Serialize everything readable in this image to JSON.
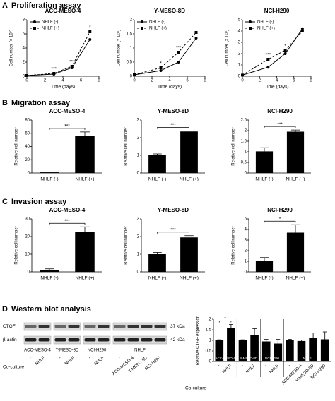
{
  "sections": [
    {
      "letter": "A",
      "title": "Proliferation assay"
    },
    {
      "letter": "B",
      "title": "Migration assay"
    },
    {
      "letter": "C",
      "title": "Invasion assay"
    },
    {
      "letter": "D",
      "title": "Western blot analysis"
    }
  ],
  "blot": {
    "rows": [
      {
        "label": "CTGF",
        "size": "37 kDa"
      },
      {
        "label": "β-actin",
        "size": "42 kDa"
      }
    ],
    "groups": [
      {
        "name": "ACC-MESO-4",
        "lanes": [
          "-",
          "NHLF"
        ]
      },
      {
        "name": "Y-MESO-8D",
        "lanes": [
          "-",
          "NHLF"
        ]
      },
      {
        "name": "NCI-H290",
        "lanes": [
          "-",
          "NHLF"
        ]
      },
      {
        "name": "NHLF",
        "lanes": [
          "-",
          "ACC-MESO-4",
          "Y-MESO-8D",
          "NCI-H290"
        ]
      }
    ],
    "row_label": "Co-culture"
  },
  "chart_data": [
    {
      "type": "line",
      "title": "ACC-MESO-4",
      "x_label": "Time (days)",
      "y_label": "Cell number (× 10⁵)",
      "x": [
        0,
        3,
        5,
        7
      ],
      "xlim": [
        0,
        8
      ],
      "xticks": [
        0,
        2,
        4,
        6,
        8
      ],
      "ylim": [
        0,
        8
      ],
      "yticks": [
        0,
        2,
        4,
        6,
        8
      ],
      "series": [
        {
          "name": "NHLF (-)",
          "color": "#000000",
          "marker": "circle",
          "dash": false,
          "values": [
            0.1,
            0.3,
            1.2,
            5.2
          ]
        },
        {
          "name": "NHLF (+)",
          "color": "#000000",
          "marker": "square",
          "dash": true,
          "values": [
            0.1,
            0.4,
            1.4,
            6.3
          ]
        }
      ],
      "significance": [
        null,
        "***",
        "***",
        "*"
      ]
    },
    {
      "type": "line",
      "title": "Y-MESO-8D",
      "x_label": "Time (days)",
      "y_label": "Cell number (× 10⁵)",
      "x": [
        0,
        3,
        5,
        7
      ],
      "xlim": [
        0,
        8
      ],
      "xticks": [
        0,
        2,
        4,
        6,
        8
      ],
      "ylim": [
        0,
        2
      ],
      "yticks": [
        0,
        0.5,
        1,
        1.5,
        2
      ],
      "series": [
        {
          "name": "NHLF (-)",
          "color": "#000000",
          "marker": "circle",
          "dash": false,
          "values": [
            0.05,
            0.2,
            0.5,
            1.35
          ]
        },
        {
          "name": "NHLF (+)",
          "color": "#000000",
          "marker": "square",
          "dash": true,
          "values": [
            0.05,
            0.3,
            0.85,
            1.55
          ]
        }
      ],
      "significance": [
        null,
        "*",
        "***",
        null
      ]
    },
    {
      "type": "line",
      "title": "NCI-H290",
      "x_label": "Time (days)",
      "y_label": "Cell number (× 10⁵)",
      "x": [
        0,
        3,
        5,
        7
      ],
      "xlim": [
        0,
        8
      ],
      "xticks": [
        0,
        2,
        4,
        6,
        8
      ],
      "ylim": [
        0,
        5
      ],
      "yticks": [
        0,
        1,
        2,
        3,
        4,
        5
      ],
      "series": [
        {
          "name": "NHLF (-)",
          "color": "#000000",
          "marker": "circle",
          "dash": false,
          "values": [
            0.1,
            0.8,
            2.0,
            4.2
          ]
        },
        {
          "name": "NHLF (+)",
          "color": "#000000",
          "marker": "square",
          "dash": true,
          "values": [
            0.1,
            1.5,
            2.3,
            4.0
          ]
        }
      ],
      "significance": [
        null,
        "***",
        "*",
        null
      ]
    },
    {
      "type": "bar",
      "title": "ACC-MESO-4",
      "y_label": "Relative cell number",
      "color": "#000000",
      "categories": [
        "NHLF (-)",
        "NHLF (+)"
      ],
      "values": [
        1,
        56
      ],
      "errors": [
        0.5,
        6
      ],
      "ylim": [
        0,
        80
      ],
      "yticks": [
        0,
        20,
        40,
        60,
        80
      ],
      "significance": "***"
    },
    {
      "type": "bar",
      "title": "Y-MESO-8D",
      "y_label": "Relative cell number",
      "color": "#000000",
      "categories": [
        "NHLF (-)",
        "NHLF (+)"
      ],
      "values": [
        1,
        2.35
      ],
      "errors": [
        0.08,
        0.03
      ],
      "ylim": [
        0,
        3
      ],
      "yticks": [
        0,
        1,
        2,
        3
      ],
      "significance": "***"
    },
    {
      "type": "bar",
      "title": "NCI-H290",
      "y_label": "Relative cell number",
      "color": "#000000",
      "categories": [
        "NHLF (-)",
        "NHLF (+)"
      ],
      "values": [
        1.02,
        1.95
      ],
      "errors": [
        0.17,
        0.08
      ],
      "ylim": [
        0,
        2.5
      ],
      "yticks": [
        0,
        0.5,
        1,
        1.5,
        2,
        2.5
      ],
      "significance": "***"
    },
    {
      "type": "bar",
      "title": "ACC-MESO-4",
      "y_label": "Relative cell number",
      "color": "#000000",
      "categories": [
        "NHLF (-)",
        "NHLF (+)"
      ],
      "values": [
        1.2,
        22.5
      ],
      "errors": [
        0.5,
        3
      ],
      "ylim": [
        0,
        30
      ],
      "yticks": [
        0,
        10,
        20,
        30
      ],
      "significance": "***"
    },
    {
      "type": "bar",
      "title": "Y-MESO-8D",
      "y_label": "Relative cell number",
      "color": "#000000",
      "categories": [
        "NHLF (-)",
        "NHLF (+)"
      ],
      "values": [
        1,
        1.95
      ],
      "errors": [
        0.1,
        0.1
      ],
      "ylim": [
        0,
        3
      ],
      "yticks": [
        0,
        1,
        2,
        3
      ],
      "significance": "***"
    },
    {
      "type": "bar",
      "title": "NCI-H290",
      "y_label": "Relative cell number",
      "color": "#000000",
      "categories": [
        "NHLF (-)",
        "NHLF (+)"
      ],
      "values": [
        1,
        3.7
      ],
      "errors": [
        0.35,
        0.75
      ],
      "ylim": [
        0,
        5
      ],
      "yticks": [
        0,
        1,
        2,
        3,
        4,
        5
      ],
      "significance": "*"
    },
    {
      "type": "bar",
      "y_label": "Relative CTGF expression",
      "x_label": "Co-culture",
      "color": "#000000",
      "ylim": [
        0,
        2
      ],
      "yticks": [
        0,
        0.5,
        1,
        1.5,
        2
      ],
      "groups": [
        {
          "name": "ACC-MESO-4",
          "categories": [
            "-",
            "NHLF"
          ],
          "values": [
            1,
            1.6
          ],
          "errors": [
            0.03,
            0.15
          ],
          "significance": "*"
        },
        {
          "name": "Y-MESO-8D",
          "categories": [
            "-",
            "NHLF"
          ],
          "values": [
            1,
            1.25
          ],
          "errors": [
            0.03,
            0.3
          ]
        },
        {
          "name": "NCI-H290",
          "categories": [
            "-",
            "NHLF"
          ],
          "values": [
            0.95,
            0.85
          ],
          "errors": [
            0.1,
            0.2
          ]
        },
        {
          "name": "NHLF",
          "categories": [
            "-",
            "ACC-MESO-4",
            "Y-MESO-8D",
            "NCI-H290"
          ],
          "values": [
            1,
            0.97,
            1.1,
            1.05
          ],
          "errors": [
            0.05,
            0.05,
            0.25,
            0.35
          ]
        }
      ]
    }
  ]
}
